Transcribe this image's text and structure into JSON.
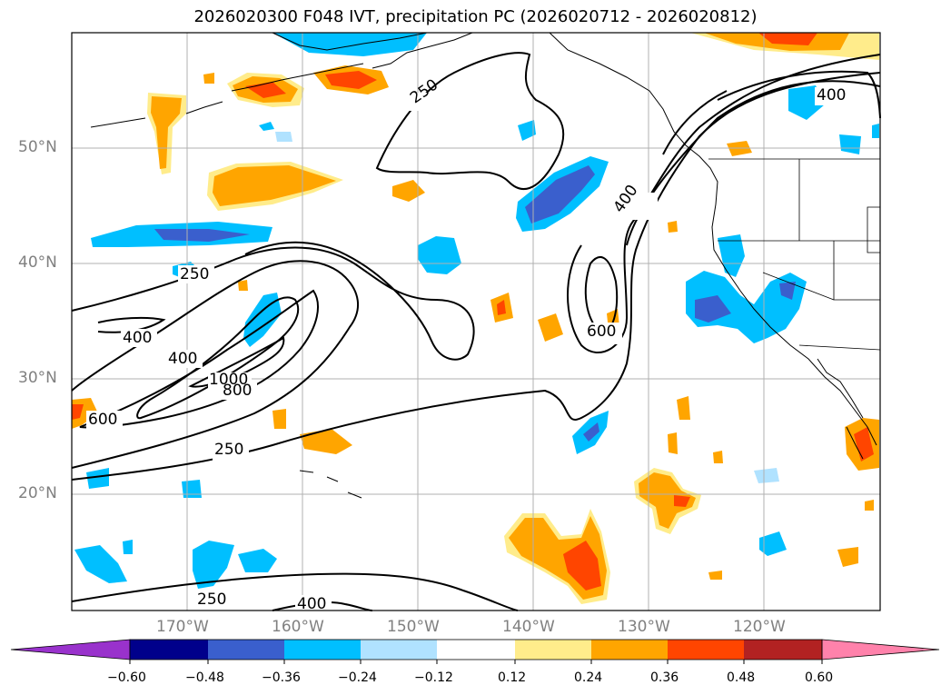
{
  "title": "2026020300 F048 IVT, precipitation PC (2026020712 - 2026020812)",
  "lat_labels": [
    "50°N",
    "40°N",
    "30°N",
    "20°N"
  ],
  "lon_labels": [
    "170°W",
    "160°W",
    "150°W",
    "140°W",
    "130°W",
    "120°W"
  ],
  "contour_labels": [
    "250",
    "250",
    "250",
    "250",
    "400",
    "400",
    "400",
    "400",
    "400",
    "600",
    "600",
    "800",
    "1000"
  ],
  "colorbar": {
    "tick_labels": [
      "−0.60",
      "−0.48",
      "−0.36",
      "−0.24",
      "−0.12",
      "0.12",
      "0.24",
      "0.36",
      "0.48",
      "0.60"
    ],
    "colors": [
      "#9932cc",
      "#00008b",
      "#3a5fcd",
      "#00bfff",
      "#b0e2ff",
      "#ffffff",
      "#ffec8b",
      "#ffa500",
      "#ff4500",
      "#b22222",
      "#ff82ab"
    ]
  },
  "colors": {
    "positive_light": "#ffec8b",
    "positive_mid": "#ffa500",
    "positive_strong": "#ff4500",
    "negative_light": "#b0e2ff",
    "negative_mid": "#00bfff",
    "negative_strong": "#3a5fcd",
    "grid": "#b0b0b0",
    "axis_label": "#808080"
  }
}
